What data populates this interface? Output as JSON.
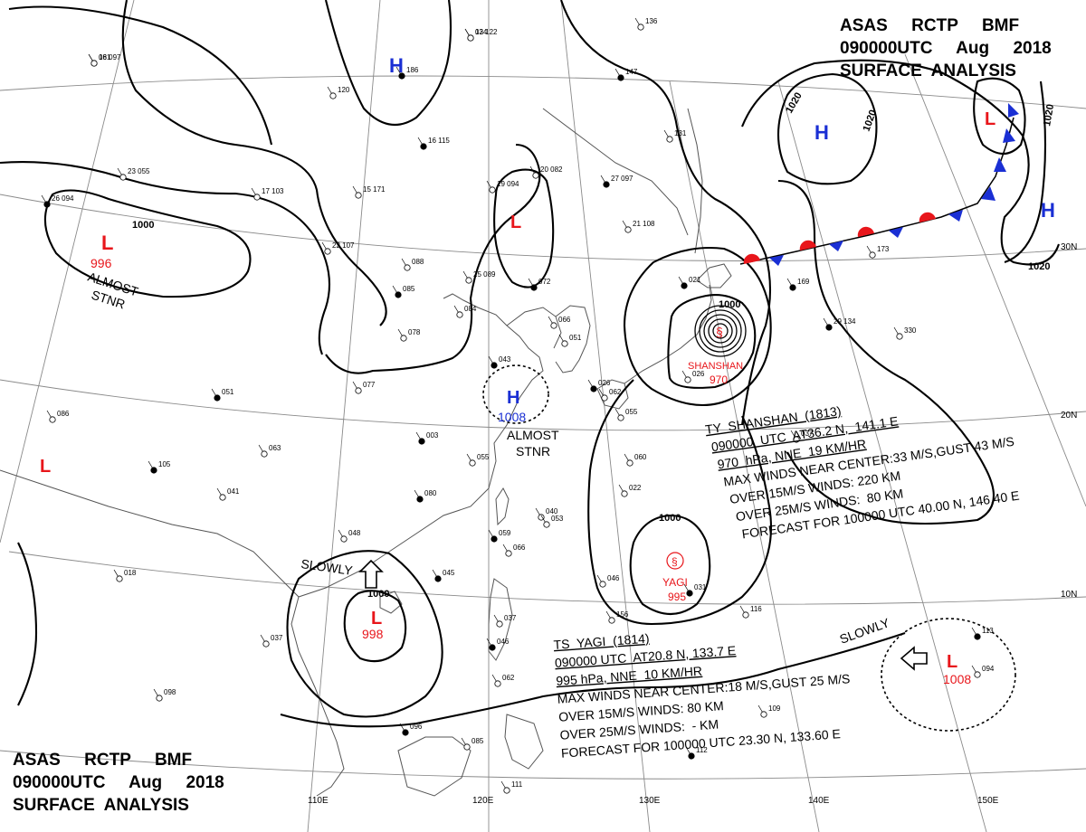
{
  "header_top": {
    "line1": "ASAS     RCTP     BMF",
    "line2": "090000UTC     Aug     2018",
    "line3": "SURFACE  ANALYSIS"
  },
  "header_bottom": {
    "line1": "ASAS     RCTP     BMF",
    "line2": "090000UTC     Aug     2018",
    "line3": "SURFACE  ANALYSIS"
  },
  "graticule": {
    "lon_labels": [
      "110E",
      "120E",
      "130E",
      "140E",
      "150E"
    ],
    "lat_labels": [
      "30N",
      "20N",
      "10N"
    ]
  },
  "isobar_labels": {
    "l996_line": "1000",
    "ne_1020_a": "1020",
    "ne_1020_b": "1020",
    "ne_1020_c": "1020",
    "ne_1020_d": "1020",
    "shanshan_1000": "1000",
    "yagi_1000": "1000",
    "scs_1000": "1000"
  },
  "systems": {
    "low_west": {
      "letter": "L",
      "pressure": "996",
      "note_line1": "ALMOST",
      "note_line2": "STNR"
    },
    "high_north": {
      "letter": "H"
    },
    "low_north": {
      "letter": "L"
    },
    "high_yellow_sea": {
      "letter": "H",
      "pressure": "1008",
      "note_line1": "ALMOST",
      "note_line2": "STNR"
    },
    "low_far_west": {
      "letter": "L"
    },
    "low_scs": {
      "letter": "L",
      "pressure": "998",
      "motion": "SLOWLY"
    },
    "shanshan": {
      "name": "SHANSHAN",
      "pressure": "970"
    },
    "yagi": {
      "name": "YAGI",
      "pressure": "995"
    },
    "low_east": {
      "letter": "L",
      "pressure": "1008",
      "motion": "SLOWLY"
    },
    "high_ne": {
      "letter": "H"
    },
    "low_ne": {
      "letter": "L"
    },
    "high_east": {
      "letter": "H"
    }
  },
  "advisory_shanshan": {
    "line1": "TY  SHANSHAN  (1813)",
    "line2": "090000  UTC  AT36.2 N,  141.1 E",
    "line3": "970  hPa, NNE  19 KM/HR",
    "line4": "MAX WINDS NEAR CENTER:33 M/S,GUST 43 M/S",
    "line5": "OVER 15M/S WINDS: 220 KM",
    "line6": "OVER 25M/S WINDS:  80 KM",
    "line7": "FORECAST FOR 100000 UTC 40.00 N, 146.40 E"
  },
  "advisory_yagi": {
    "line1": "TS  YAGI  (1814)",
    "line2": "090000 UTC  AT20.8 N, 133.7 E",
    "line3": "995 hPa, NNE  10 KM/HR",
    "line4": "MAX WINDS NEAR CENTER:18 M/S,GUST 25 M/S",
    "line5": "OVER 15M/S WINDS: 80 KM",
    "line6": "OVER 25M/S WINDS:  - KM",
    "line7": "FORECAST FOR 100000 UTC 23.30 N, 133.60 E"
  },
  "stations": [
    "16 097",
    "13 122",
    "136",
    "186",
    "120",
    "23 055",
    "26 094",
    "17 103",
    "15 171",
    "16 115",
    "20 082",
    "19 094",
    "27 097",
    "131",
    "21 108",
    "147",
    "22 107",
    "088",
    "085",
    "084",
    "25 089",
    "072",
    "066",
    "051",
    "021",
    "078",
    "077",
    "043",
    "026",
    "062",
    "003",
    "055",
    "063",
    "080",
    "060",
    "037",
    "29 134",
    "330",
    "173",
    "169",
    "156",
    "048",
    "045",
    "046",
    "022",
    "031",
    "040",
    "053",
    "059",
    "066",
    "037",
    "046",
    "062",
    "098",
    "096",
    "085",
    "111",
    "112",
    "109",
    "116",
    "113",
    "094",
    "086",
    "105",
    "018",
    "037",
    "051",
    "041",
    "055",
    "026",
    "081",
    "024"
  ],
  "colors": {
    "low": "#e8161b",
    "high": "#1a2fd4",
    "isobar": "#000000",
    "grid": "#8a8a8a",
    "coast": "#555555",
    "front_cold": "#1a2fd4",
    "front_warm": "#e8161b"
  },
  "symbols": {
    "tropical_cyclone": "tropical-cyclone-icon",
    "motion_arrow": "motion-arrow-icon",
    "station": "station-model-icon"
  }
}
